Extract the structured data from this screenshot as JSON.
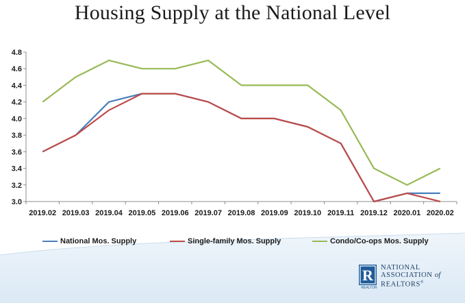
{
  "chart_data": {
    "type": "line",
    "title": "Housing Supply at the National Level",
    "xlabel": "",
    "ylabel": "",
    "categories": [
      "2019.02",
      "2019.03",
      "2019.04",
      "2019.05",
      "2019.06",
      "2019.07",
      "2019.08",
      "2019.09",
      "2019.10",
      "2019.11",
      "2019.12",
      "2020.01",
      "2020.02"
    ],
    "ylim": [
      3.0,
      4.8
    ],
    "yticks": [
      "4.8",
      "4.6",
      "4.4",
      "4.2",
      "4.0",
      "3.8",
      "3.6",
      "3.4",
      "3.2",
      "3.0"
    ],
    "grid": false,
    "legend_position": "bottom",
    "series": [
      {
        "name": "National Mos. Supply",
        "color": "#4a7ebb",
        "values": [
          3.6,
          3.8,
          4.2,
          4.3,
          4.3,
          4.2,
          4.0,
          4.0,
          3.9,
          3.7,
          3.0,
          3.1,
          3.1
        ]
      },
      {
        "name": "Single-family Mos. Supply",
        "color": "#be4b48",
        "values": [
          3.6,
          3.8,
          4.1,
          4.3,
          4.3,
          4.2,
          4.0,
          4.0,
          3.9,
          3.7,
          3.0,
          3.1,
          3.0
        ]
      },
      {
        "name": "Condo/Co-ops Mos. Supply",
        "color": "#98b954",
        "values": [
          4.2,
          4.5,
          4.7,
          4.6,
          4.6,
          4.7,
          4.4,
          4.4,
          4.4,
          4.1,
          3.4,
          3.2,
          3.4
        ]
      }
    ]
  },
  "logo": {
    "line1": "NATIONAL",
    "line2": "ASSOCIATION",
    "of": "of",
    "line3": "REALTORS",
    "mark": "R",
    "sub": "REALTOR"
  }
}
